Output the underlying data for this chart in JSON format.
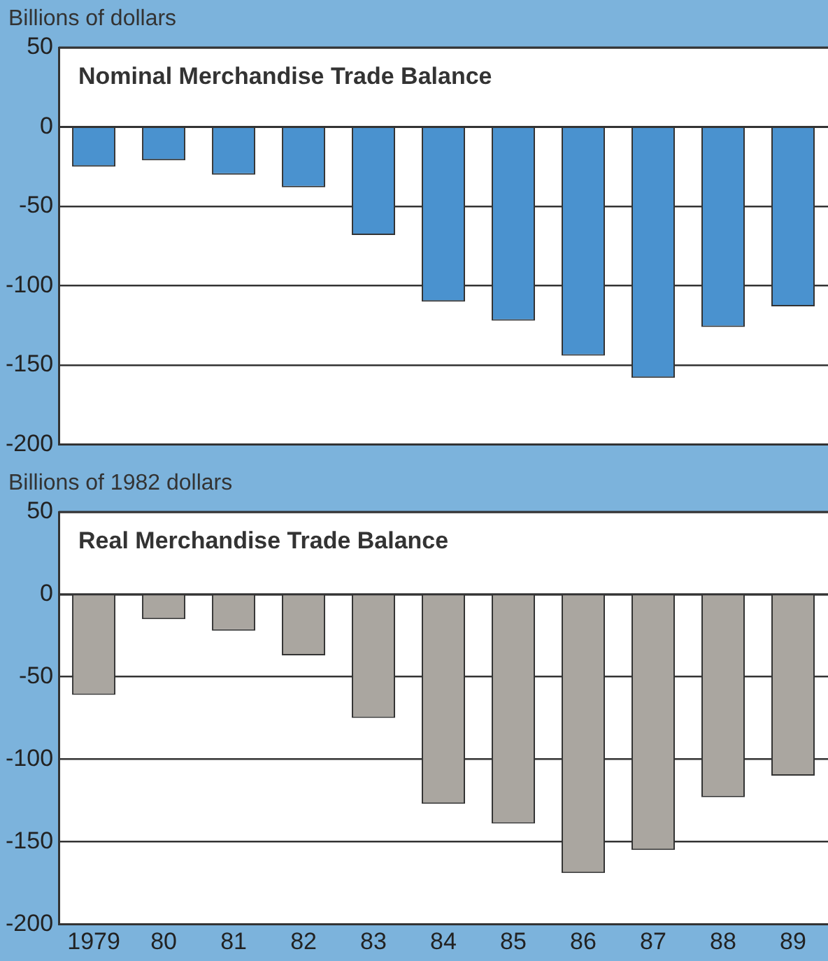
{
  "chart_data": [
    {
      "type": "bar",
      "title": "Nominal Merchandise Trade Balance",
      "ylabel": "Billions of dollars",
      "categories": [
        "1979",
        "80",
        "81",
        "82",
        "83",
        "84",
        "85",
        "86",
        "87",
        "88",
        "89"
      ],
      "values": [
        -25,
        -21,
        -30,
        -38,
        -68,
        -110,
        -122,
        -144,
        -158,
        -126,
        -113
      ],
      "color": "#4a92cf",
      "ylim": [
        -200,
        50
      ],
      "yticks": [
        -200,
        -150,
        -100,
        -50,
        0,
        50
      ],
      "grid": "y",
      "tick_labels": "y"
    },
    {
      "type": "bar",
      "title": "Real Merchandise Trade Balance",
      "ylabel": "Billions of 1982 dollars",
      "categories": [
        "1979",
        "80",
        "81",
        "82",
        "83",
        "84",
        "85",
        "86",
        "87",
        "88",
        "89"
      ],
      "values": [
        -61,
        -15,
        -22,
        -37,
        -75,
        -127,
        -139,
        -169,
        -155,
        -123,
        -110
      ],
      "color": "#aaa6a0",
      "ylim": [
        -200,
        50
      ],
      "yticks": [
        -200,
        -150,
        -100,
        -50,
        0,
        50
      ],
      "grid": "y"
    }
  ]
}
